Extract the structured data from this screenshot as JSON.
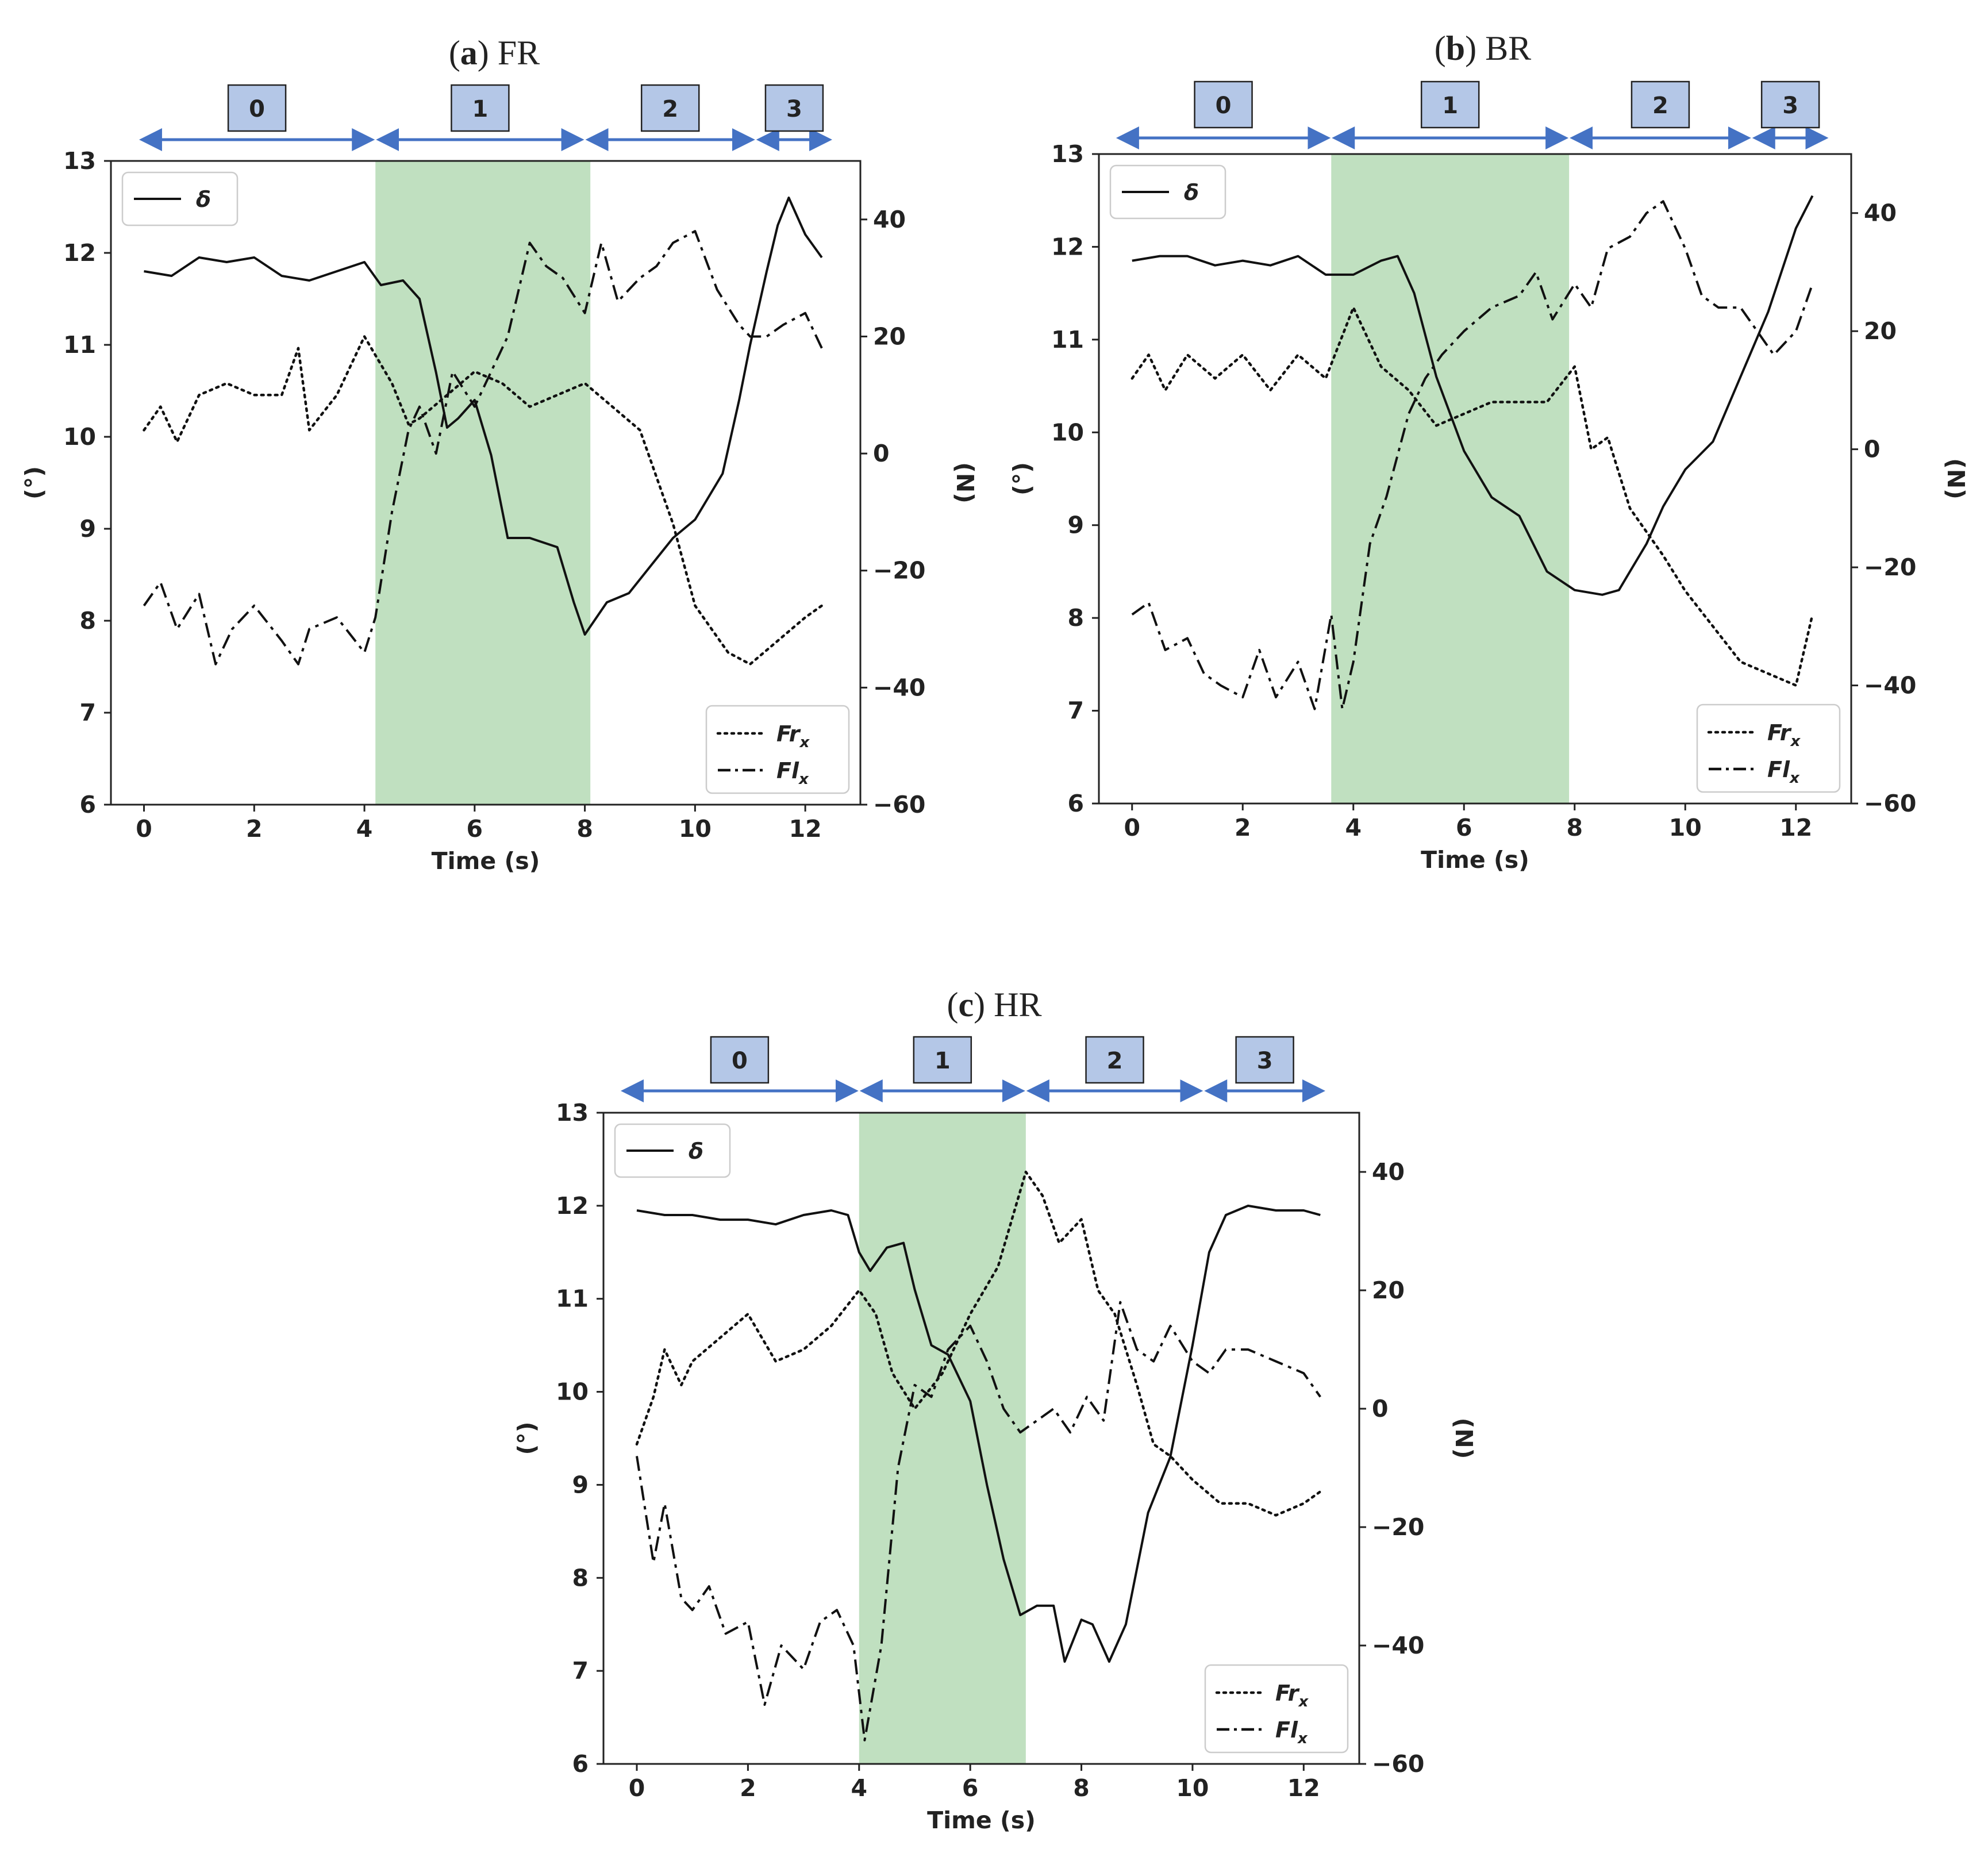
{
  "chart_data": [
    {
      "id": "a",
      "type": "line",
      "title": "(a) FR",
      "title_letter": "a",
      "title_text": "FR",
      "xlabel": "Time (s)",
      "ylabel_left": "(°)",
      "ylabel_right": "(N)",
      "xlim": [
        -0.6,
        13.0
      ],
      "ylim_left": [
        6,
        13
      ],
      "ylim_right": [
        -60,
        50
      ],
      "xticks": [
        0,
        2,
        4,
        6,
        8,
        10,
        12
      ],
      "yticks_left": [
        6,
        7,
        8,
        9,
        10,
        11,
        12,
        13
      ],
      "yticks_right": [
        -60,
        -40,
        -20,
        0,
        20,
        40
      ],
      "highlight": {
        "from": 4.2,
        "to": 8.1,
        "color": "#c0e0c0"
      },
      "phases": [
        {
          "label": "0",
          "from": -0.1,
          "to": 4.2
        },
        {
          "label": "1",
          "from": 4.2,
          "to": 8.0
        },
        {
          "label": "2",
          "from": 8.0,
          "to": 11.1
        },
        {
          "label": "3",
          "from": 11.1,
          "to": 12.5
        }
      ],
      "legend_left": {
        "position": "upper-left",
        "entries": [
          "δ"
        ]
      },
      "legend_right": {
        "position": "lower-right",
        "entries": [
          "Fr",
          "Fl"
        ],
        "subscript": "x"
      },
      "series": [
        {
          "name": "δ",
          "axis": "left",
          "style": "solid",
          "x": [
            0,
            0.5,
            1,
            1.5,
            2,
            2.5,
            3,
            3.5,
            4,
            4.3,
            4.7,
            5,
            5.3,
            5.5,
            5.7,
            6,
            6.3,
            6.6,
            7,
            7.5,
            7.8,
            8,
            8.4,
            8.8,
            9.2,
            9.6,
            10,
            10.5,
            10.8,
            11,
            11.3,
            11.5,
            11.7,
            12,
            12.3
          ],
          "y": [
            11.8,
            11.75,
            11.95,
            11.9,
            11.95,
            11.75,
            11.7,
            11.8,
            11.9,
            11.65,
            11.7,
            11.5,
            10.7,
            10.1,
            10.2,
            10.4,
            9.8,
            8.9,
            8.9,
            8.8,
            8.2,
            7.85,
            8.2,
            8.3,
            8.6,
            8.9,
            9.1,
            9.6,
            10.4,
            11.0,
            11.8,
            12.3,
            12.6,
            12.2,
            11.95
          ]
        },
        {
          "name": "Fr",
          "subscript": "x",
          "axis": "right",
          "style": "dotted",
          "x": [
            0,
            0.3,
            0.6,
            1,
            1.5,
            2,
            2.5,
            2.8,
            3,
            3.5,
            4,
            4.5,
            4.8,
            5,
            5.5,
            6,
            6.5,
            7,
            7.5,
            8,
            8.5,
            9,
            9.3,
            9.6,
            10,
            10.3,
            10.6,
            11,
            11.5,
            12,
            12.3
          ],
          "y": [
            4,
            8,
            2,
            10,
            12,
            10,
            10,
            18,
            4,
            10,
            20,
            12,
            5,
            6,
            10,
            14,
            12,
            8,
            10,
            12,
            8,
            4,
            -4,
            -12,
            -26,
            -30,
            -34,
            -36,
            -32,
            -28,
            -26
          ]
        },
        {
          "name": "Fl",
          "subscript": "x",
          "axis": "right",
          "style": "dashdot",
          "x": [
            0,
            0.3,
            0.6,
            1,
            1.3,
            1.6,
            2,
            2.5,
            2.8,
            3,
            3.5,
            4,
            4.2,
            4.5,
            4.8,
            5,
            5.3,
            5.6,
            6,
            6.3,
            6.6,
            7,
            7.3,
            7.6,
            8,
            8.3,
            8.6,
            9,
            9.3,
            9.6,
            10,
            10.4,
            10.8,
            11,
            11.3,
            11.6,
            12,
            12.3
          ],
          "y": [
            -26,
            -22,
            -30,
            -24,
            -36,
            -30,
            -26,
            -32,
            -36,
            -30,
            -28,
            -34,
            -28,
            -10,
            4,
            8,
            0,
            14,
            8,
            14,
            20,
            36,
            32,
            30,
            24,
            36,
            26,
            30,
            32,
            36,
            38,
            28,
            22,
            20,
            20,
            22,
            24,
            18
          ]
        }
      ]
    },
    {
      "id": "b",
      "type": "line",
      "title": "(b) BR",
      "title_letter": "b",
      "title_text": "BR",
      "xlabel": "Time (s)",
      "ylabel_left": "(°)",
      "ylabel_right": "(N)",
      "xlim": [
        -0.6,
        13.0
      ],
      "ylim_left": [
        6,
        13
      ],
      "ylim_right": [
        -60,
        50
      ],
      "xticks": [
        0,
        2,
        4,
        6,
        8,
        10,
        12
      ],
      "yticks_left": [
        6,
        7,
        8,
        9,
        10,
        11,
        12,
        13
      ],
      "yticks_right": [
        -60,
        -40,
        -20,
        0,
        20,
        40
      ],
      "highlight": {
        "from": 3.6,
        "to": 7.9,
        "color": "#c0e0c0"
      },
      "phases": [
        {
          "label": "0",
          "from": -0.3,
          "to": 3.6
        },
        {
          "label": "1",
          "from": 3.6,
          "to": 7.9
        },
        {
          "label": "2",
          "from": 7.9,
          "to": 11.2
        },
        {
          "label": "3",
          "from": 11.2,
          "to": 12.6
        }
      ],
      "legend_left": {
        "position": "upper-left",
        "entries": [
          "δ"
        ]
      },
      "legend_right": {
        "position": "lower-right",
        "entries": [
          "Fr",
          "Fl"
        ],
        "subscript": "x"
      },
      "series": [
        {
          "name": "δ",
          "axis": "left",
          "style": "solid",
          "x": [
            0,
            0.5,
            1,
            1.5,
            2,
            2.5,
            3,
            3.5,
            4,
            4.5,
            4.8,
            5.1,
            5.5,
            6,
            6.5,
            7,
            7.5,
            8,
            8.5,
            8.8,
            9,
            9.3,
            9.6,
            10,
            10.5,
            11,
            11.5,
            12,
            12.3
          ],
          "y": [
            11.85,
            11.9,
            11.9,
            11.8,
            11.85,
            11.8,
            11.9,
            11.7,
            11.7,
            11.85,
            11.9,
            11.5,
            10.6,
            9.8,
            9.3,
            9.1,
            8.5,
            8.3,
            8.25,
            8.3,
            8.5,
            8.8,
            9.2,
            9.6,
            9.9,
            10.6,
            11.3,
            12.2,
            12.55
          ]
        },
        {
          "name": "Fr",
          "subscript": "x",
          "axis": "right",
          "style": "dotted",
          "x": [
            0,
            0.3,
            0.6,
            1,
            1.5,
            2,
            2.5,
            3,
            3.5,
            4,
            4.5,
            5,
            5.5,
            6,
            6.5,
            7,
            7.5,
            8,
            8.3,
            8.6,
            9,
            9.3,
            9.6,
            10,
            10.5,
            11,
            11.5,
            12,
            12.3
          ],
          "y": [
            12,
            16,
            10,
            16,
            12,
            16,
            10,
            16,
            12,
            24,
            14,
            10,
            4,
            6,
            8,
            8,
            8,
            14,
            0,
            2,
            -10,
            -14,
            -18,
            -24,
            -30,
            -36,
            -38,
            -40,
            -28
          ]
        },
        {
          "name": "Fl",
          "subscript": "x",
          "axis": "right",
          "style": "dashdot",
          "x": [
            0,
            0.3,
            0.6,
            1,
            1.3,
            1.6,
            2,
            2.3,
            2.6,
            3,
            3.3,
            3.6,
            3.8,
            4,
            4.3,
            4.6,
            5,
            5.3,
            5.6,
            6,
            6.5,
            7,
            7.3,
            7.6,
            8,
            8.3,
            8.6,
            9,
            9.3,
            9.6,
            10,
            10.3,
            10.6,
            11,
            11.3,
            11.6,
            12,
            12.3
          ],
          "y": [
            -28,
            -26,
            -34,
            -32,
            -38,
            -40,
            -42,
            -34,
            -42,
            -36,
            -44,
            -28,
            -44,
            -36,
            -16,
            -8,
            6,
            12,
            16,
            20,
            24,
            26,
            30,
            22,
            28,
            24,
            34,
            36,
            40,
            42,
            34,
            26,
            24,
            24,
            20,
            16,
            20,
            28
          ]
        }
      ]
    },
    {
      "id": "c",
      "type": "line",
      "title": "(c) HR",
      "title_letter": "c",
      "title_text": "HR",
      "xlabel": "Time (s)",
      "ylabel_left": "(°)",
      "ylabel_right": "(N)",
      "xlim": [
        -0.6,
        13.0
      ],
      "ylim_left": [
        6,
        13
      ],
      "ylim_right": [
        -60,
        50
      ],
      "xticks": [
        0,
        2,
        4,
        6,
        8,
        10,
        12
      ],
      "yticks_left": [
        6,
        7,
        8,
        9,
        10,
        11,
        12,
        13
      ],
      "yticks_right": [
        -60,
        -40,
        -20,
        0,
        20,
        40
      ],
      "highlight": {
        "from": 4.0,
        "to": 7.0,
        "color": "#c0e0c0"
      },
      "phases": [
        {
          "label": "0",
          "from": -0.3,
          "to": 4.0
        },
        {
          "label": "1",
          "from": 4.0,
          "to": 7.0
        },
        {
          "label": "2",
          "from": 7.0,
          "to": 10.2
        },
        {
          "label": "3",
          "from": 10.2,
          "to": 12.4
        }
      ],
      "legend_left": {
        "position": "upper-left",
        "entries": [
          "δ"
        ]
      },
      "legend_right": {
        "position": "lower-right",
        "entries": [
          "Fr",
          "Fl"
        ],
        "subscript": "x"
      },
      "series": [
        {
          "name": "δ",
          "axis": "left",
          "style": "solid",
          "x": [
            0,
            0.5,
            1,
            1.5,
            2,
            2.5,
            3,
            3.5,
            3.8,
            4,
            4.2,
            4.5,
            4.8,
            5,
            5.3,
            5.6,
            6,
            6.3,
            6.6,
            6.9,
            7.2,
            7.5,
            7.7,
            8,
            8.2,
            8.5,
            8.8,
            9.2,
            9.6,
            10,
            10.3,
            10.6,
            11,
            11.5,
            12,
            12.3
          ],
          "y": [
            11.95,
            11.9,
            11.9,
            11.85,
            11.85,
            11.8,
            11.9,
            11.95,
            11.9,
            11.5,
            11.3,
            11.55,
            11.6,
            11.1,
            10.5,
            10.4,
            9.9,
            9.0,
            8.2,
            7.6,
            7.7,
            7.7,
            7.1,
            7.55,
            7.5,
            7.1,
            7.5,
            8.7,
            9.3,
            10.5,
            11.5,
            11.9,
            12.0,
            11.95,
            11.95,
            11.9
          ]
        },
        {
          "name": "Fr",
          "subscript": "x",
          "axis": "right",
          "style": "dotted",
          "x": [
            0,
            0.3,
            0.5,
            0.8,
            1,
            1.5,
            2,
            2.5,
            3,
            3.5,
            4,
            4.3,
            4.6,
            5,
            5.5,
            6,
            6.5,
            7,
            7.3,
            7.6,
            8,
            8.3,
            8.6,
            9,
            9.3,
            9.6,
            10,
            10.5,
            11,
            11.5,
            12,
            12.3
          ],
          "y": [
            -6,
            2,
            10,
            4,
            8,
            12,
            16,
            8,
            10,
            14,
            20,
            16,
            6,
            0,
            6,
            16,
            24,
            40,
            36,
            28,
            32,
            20,
            16,
            4,
            -6,
            -8,
            -12,
            -16,
            -16,
            -18,
            -16,
            -14
          ]
        },
        {
          "name": "Fl",
          "subscript": "x",
          "axis": "right",
          "style": "dashdot",
          "x": [
            0,
            0.3,
            0.5,
            0.8,
            1,
            1.3,
            1.6,
            2,
            2.3,
            2.6,
            3,
            3.3,
            3.6,
            3.9,
            4.1,
            4.4,
            4.7,
            5,
            5.3,
            5.6,
            6,
            6.3,
            6.6,
            6.9,
            7.2,
            7.5,
            7.8,
            8.1,
            8.4,
            8.7,
            9,
            9.3,
            9.6,
            10,
            10.3,
            10.6,
            11,
            11.5,
            12,
            12.3
          ],
          "y": [
            -8,
            -26,
            -16,
            -32,
            -34,
            -30,
            -38,
            -36,
            -50,
            -40,
            -44,
            -36,
            -34,
            -40,
            -56,
            -40,
            -10,
            4,
            2,
            10,
            14,
            8,
            0,
            -4,
            -2,
            0,
            -4,
            2,
            -2,
            18,
            10,
            8,
            14,
            8,
            6,
            10,
            10,
            8,
            6,
            2
          ]
        }
      ]
    }
  ]
}
